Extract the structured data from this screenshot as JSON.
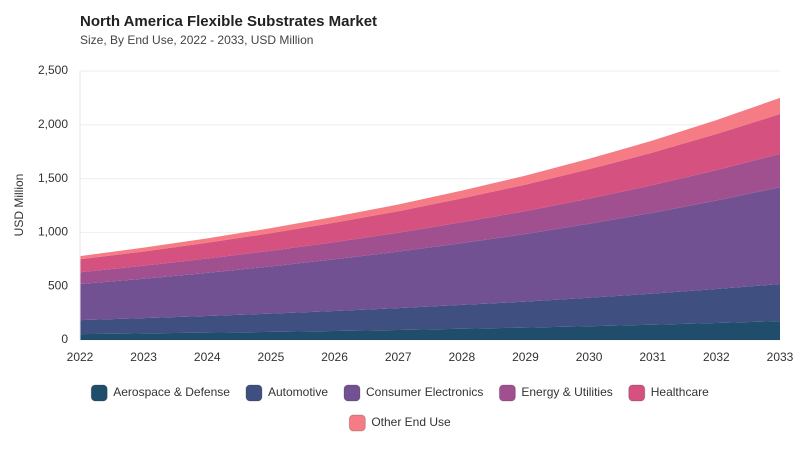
{
  "chart_data": {
    "type": "stacked-area",
    "title": "North America Flexible Substrates Market",
    "subtitle": "Size, By End Use, 2022 - 2033, USD Million",
    "y_label": "USD Million",
    "x": [
      2022,
      2023,
      2024,
      2025,
      2026,
      2027,
      2028,
      2029,
      2030,
      2031,
      2032,
      2033
    ],
    "xlim": [
      2022,
      2033
    ],
    "xticks": [
      2022,
      2023,
      2024,
      2025,
      2026,
      2027,
      2028,
      2029,
      2030,
      2031,
      2032,
      2033
    ],
    "ylim": [
      0,
      2500
    ],
    "yticks": [
      0,
      500,
      {
        "value": 1000,
        "label": "1,000"
      },
      {
        "value": 1500,
        "label": "1,500"
      },
      {
        "value": 2000,
        "label": "2,000"
      },
      {
        "value": 2500,
        "label": "2,500"
      }
    ],
    "grid": true,
    "legend": "bottom",
    "series": [
      {
        "name": "Aerospace & Defense",
        "color": "#1f4d6b",
        "values": [
          55,
          61,
          68,
          75,
          84,
          93,
          104,
          115,
          128,
          142,
          158,
          175
        ]
      },
      {
        "name": "Automotive",
        "color": "#3e4f80",
        "values": [
          130,
          142,
          155,
          170,
          186,
          203,
          222,
          242,
          265,
          289,
          316,
          345
        ]
      },
      {
        "name": "Consumer Electronics",
        "color": "#725193",
        "values": [
          335,
          366,
          401,
          439,
          480,
          525,
          574,
          628,
          687,
          752,
          822,
          900
        ]
      },
      {
        "name": "Energy & Utilities",
        "color": "#a0508f",
        "values": [
          110,
          121,
          133,
          146,
          160,
          176,
          194,
          213,
          234,
          257,
          283,
          310
        ]
      },
      {
        "name": "Healthcare",
        "color": "#d5517f",
        "values": [
          120,
          133,
          147,
          163,
          181,
          200,
          222,
          246,
          273,
          302,
          335,
          370
        ]
      },
      {
        "name": "Other End Use",
        "color": "#f57b85",
        "values": [
          30,
          35,
          40,
          47,
          54,
          62,
          72,
          84,
          97,
          112,
          130,
          150
        ]
      }
    ]
  }
}
